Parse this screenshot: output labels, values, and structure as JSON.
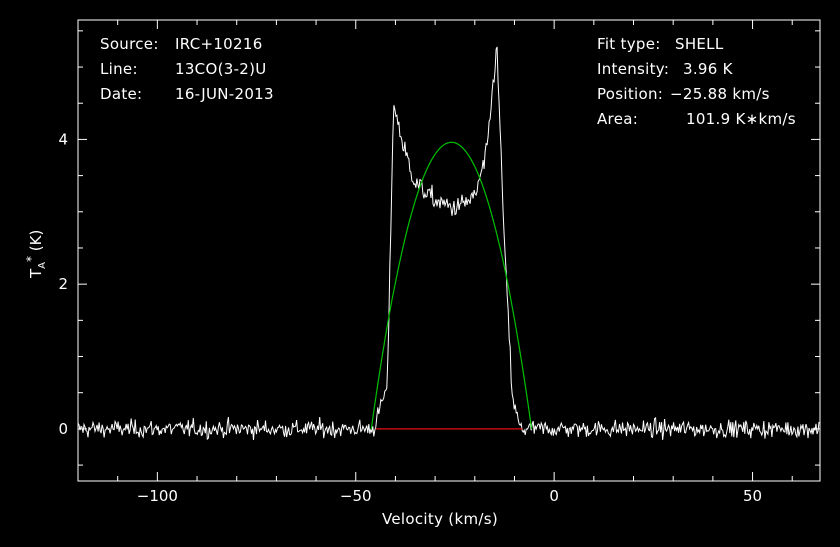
{
  "header_left": [
    {
      "key": "Source:",
      "value": "IRC+10216"
    },
    {
      "key": "Line:",
      "value": "13CO(3-2)U"
    },
    {
      "key": "Date:",
      "value": "16-JUN-2013"
    }
  ],
  "header_right": [
    {
      "key": "Fit type:",
      "value": "SHELL"
    },
    {
      "key": "Intensity:",
      "value": "3.96 K"
    },
    {
      "key": "Position:",
      "value": "−25.88 km/s"
    },
    {
      "key": "Area:",
      "value": "101.9 K∗km/s"
    }
  ],
  "chart_data": {
    "type": "line",
    "xlabel": "Velocity (km/s)",
    "ylabel": "T",
    "ylabel_sub": "A",
    "ylabel_sup": "*",
    "ylabel_unit": "(K)",
    "xlim": [
      -120,
      67
    ],
    "ylim": [
      -0.72,
      5.65
    ],
    "xticks": [
      -100,
      -50,
      0,
      50
    ],
    "xtick_labels": [
      "−100",
      "−50",
      "0",
      "50"
    ],
    "yticks": [
      0,
      2,
      4
    ],
    "ytick_labels": [
      "0",
      "2",
      "4"
    ],
    "grid": false,
    "series": [
      {
        "role": "spectrum",
        "color": "#ffffff",
        "noise_rms": 0.12,
        "profile_points": [
          {
            "x": -120,
            "y": 0
          },
          {
            "x": -45.5,
            "y": 0
          },
          {
            "x": -42,
            "y": 0.6
          },
          {
            "x": -40.5,
            "y": 4.5
          },
          {
            "x": -38,
            "y": 3.9
          },
          {
            "x": -35,
            "y": 3.4
          },
          {
            "x": -30,
            "y": 3.15
          },
          {
            "x": -25,
            "y": 3.05
          },
          {
            "x": -20,
            "y": 3.2
          },
          {
            "x": -17,
            "y": 3.8
          },
          {
            "x": -14.5,
            "y": 5.3
          },
          {
            "x": -13.5,
            "y": 4.0
          },
          {
            "x": -12.5,
            "y": 2.5
          },
          {
            "x": -10.5,
            "y": 0.4
          },
          {
            "x": -8.5,
            "y": 0
          },
          {
            "x": 67,
            "y": 0
          }
        ]
      },
      {
        "role": "fit",
        "color": "#00c000",
        "model": "shell",
        "intensity": 3.96,
        "center": -25.88,
        "half_width": 20.2
      },
      {
        "role": "baseline",
        "color": "#e01010",
        "x_range": [
          -45,
          -8
        ],
        "y": 0
      }
    ]
  }
}
